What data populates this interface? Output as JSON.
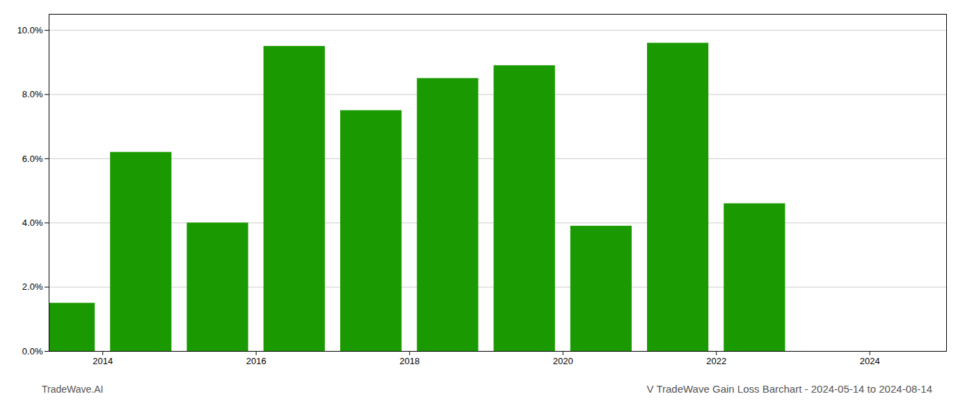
{
  "chart_data": {
    "type": "bar",
    "title": "V TradeWave Gain Loss Barchart - 2024-05-14 to 2024-08-14",
    "annotations": [
      "TradeWave.AI"
    ],
    "x": [
      2014,
      2015,
      2016,
      2017,
      2018,
      2019,
      2020,
      2021,
      2022,
      2023
    ],
    "values": [
      0.015,
      0.062,
      0.04,
      0.095,
      0.075,
      0.085,
      0.089,
      0.039,
      0.096,
      0.046
    ],
    "color": "#1a9a00",
    "xlim": [
      2013.3,
      2025.0
    ],
    "xticks": [
      2014,
      2016,
      2018,
      2020,
      2022,
      2024
    ],
    "ylim": [
      0,
      0.105
    ],
    "yticks": [
      {
        "value": 0.0,
        "label": "0.0%"
      },
      {
        "value": 0.02,
        "label": "2.0%"
      },
      {
        "value": 0.04,
        "label": "4.0%"
      },
      {
        "value": 0.06,
        "label": "6.0%"
      },
      {
        "value": 0.08,
        "label": "8.0%"
      },
      {
        "value": 0.1,
        "label": "10.0%"
      }
    ],
    "grid": true
  }
}
